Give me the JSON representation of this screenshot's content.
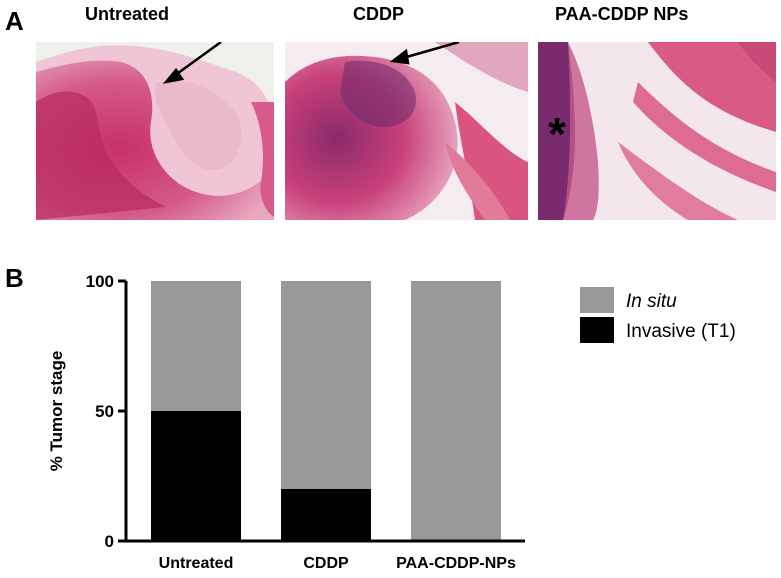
{
  "panel_a": {
    "letter": "A",
    "images": [
      {
        "title": "Untreated",
        "marker": "arrow"
      },
      {
        "title": "CDDP",
        "marker": "arrow"
      },
      {
        "title": "PAA-CDDP NPs",
        "marker": "asterisk",
        "marker_text": "*"
      }
    ]
  },
  "panel_b": {
    "letter": "B"
  },
  "chart_data": {
    "type": "bar",
    "stacked": true,
    "categories": [
      "Untreated",
      "CDDP",
      "PAA-CDDP-NPs"
    ],
    "series": [
      {
        "name": "Invasive (T1)",
        "values": [
          50,
          20,
          0
        ],
        "color": "#000000"
      },
      {
        "name": "In situ",
        "values": [
          50,
          80,
          100
        ],
        "color": "#999999"
      }
    ],
    "ylabel": "% Tumor stage",
    "xlabel": "",
    "ylim": [
      0,
      100
    ],
    "yticks": [
      0,
      50,
      100
    ],
    "legend": "right",
    "legend_order": [
      "In situ",
      "Invasive (T1)"
    ],
    "grid": false
  }
}
